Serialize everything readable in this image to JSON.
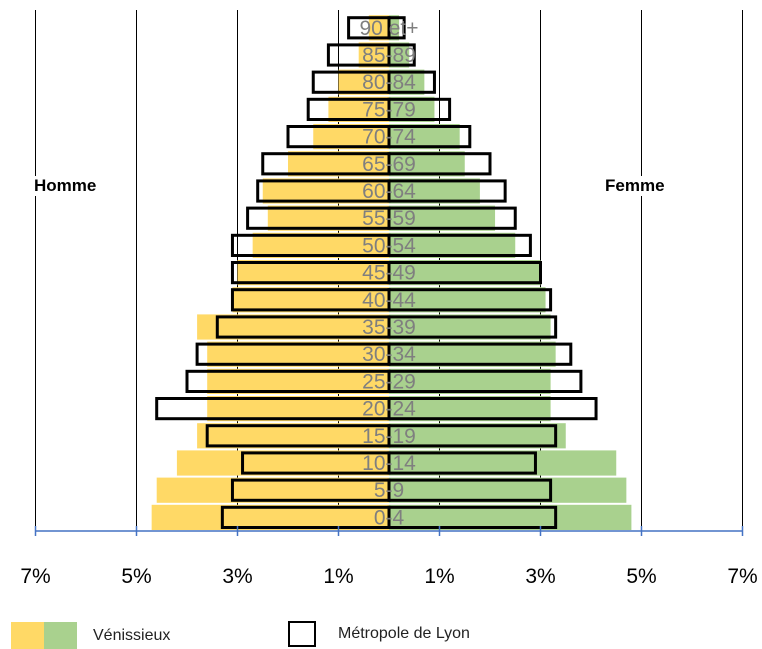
{
  "chart_data": {
    "type": "bar",
    "subtype": "population-pyramid",
    "side_labels": {
      "left": "Homme",
      "right": "Femme"
    },
    "categories": [
      "0-4",
      "5-9",
      "10-14",
      "15-19",
      "20-24",
      "25-29",
      "30-34",
      "35-39",
      "40-44",
      "45-49",
      "50-54",
      "55-59",
      "60-64",
      "65-69",
      "70-74",
      "75-79",
      "80-84",
      "85-89",
      "90 et+"
    ],
    "series": [
      {
        "name": "Vénissieux",
        "sex": "Homme",
        "values": [
          4.7,
          4.6,
          4.2,
          3.8,
          3.6,
          3.6,
          3.6,
          3.8,
          3.1,
          3.0,
          2.7,
          2.4,
          2.5,
          2.0,
          1.5,
          1.2,
          1.0,
          0.6,
          0.4
        ]
      },
      {
        "name": "Vénissieux",
        "sex": "Femme",
        "values": [
          4.8,
          4.7,
          4.5,
          3.5,
          3.2,
          3.2,
          3.3,
          3.2,
          3.1,
          3.0,
          2.5,
          2.1,
          1.8,
          1.5,
          1.4,
          0.9,
          0.7,
          0.4,
          0.2
        ]
      },
      {
        "name": "Métropole de Lyon",
        "sex": "Homme",
        "values": [
          3.3,
          3.1,
          2.9,
          3.6,
          4.6,
          4.0,
          3.8,
          3.4,
          3.1,
          3.1,
          3.1,
          2.8,
          2.6,
          2.5,
          2.0,
          1.6,
          1.5,
          1.2,
          0.8
        ]
      },
      {
        "name": "Métropole de Lyon",
        "sex": "Femme",
        "values": [
          3.3,
          3.2,
          2.9,
          3.3,
          4.1,
          3.8,
          3.6,
          3.3,
          3.2,
          3.0,
          2.8,
          2.5,
          2.3,
          2.0,
          1.6,
          1.2,
          0.9,
          0.5,
          0.3
        ]
      }
    ],
    "x_ticks": [
      "7%",
      "5%",
      "3%",
      "1%",
      "1%",
      "3%",
      "5%",
      "7%"
    ],
    "xlim": [
      -7,
      7
    ],
    "grid": true,
    "colors": {
      "homme": "#FFD966",
      "femme": "#A9D18E",
      "outline": "#000000",
      "axis": "#4472C4",
      "label": "#7F7F7F"
    }
  },
  "legend": {
    "venissieux_label": "Vénissieux",
    "metropole_label": "Métropole de Lyon"
  }
}
